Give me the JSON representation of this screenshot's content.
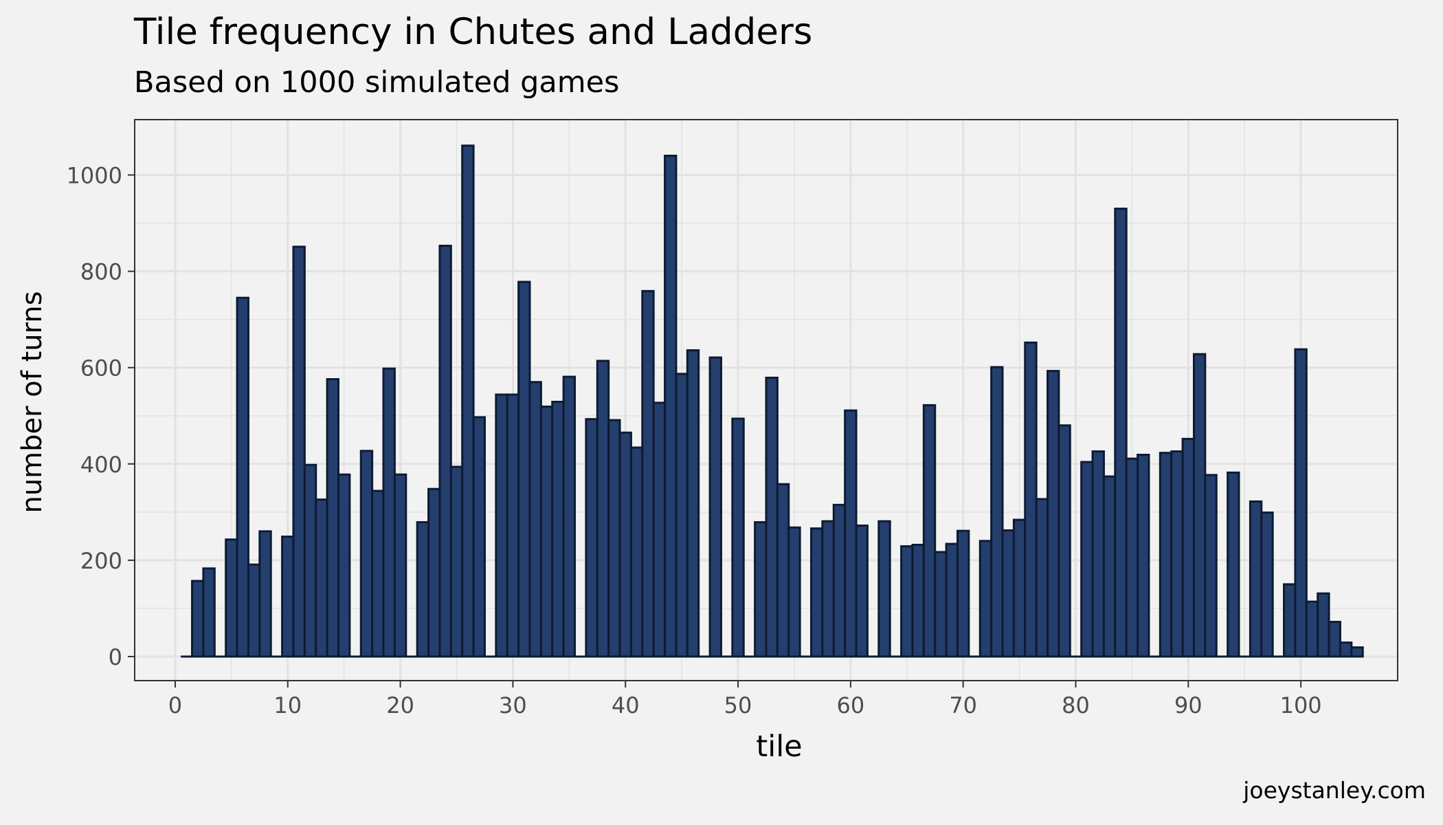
{
  "chart_data": {
    "type": "bar",
    "title": "Tile frequency in Chutes and Ladders",
    "subtitle": "Based on 1000 simulated games",
    "xlabel": "tile",
    "ylabel": "number of turns",
    "caption": "joeystanley.com",
    "xlim": [
      -3.6,
      108.6
    ],
    "ylim": [
      -50,
      1115
    ],
    "x_ticks": [
      0,
      10,
      20,
      30,
      40,
      50,
      60,
      70,
      80,
      90,
      100
    ],
    "y_ticks": [
      0,
      200,
      400,
      600,
      800,
      1000
    ],
    "grid": true,
    "bar_fill": "#243f6d",
    "bar_edge": "#0d1a33",
    "panel_background": "#f2f2f2",
    "grid_color": "#e2e2e2",
    "x": [
      1,
      2,
      3,
      4,
      5,
      6,
      7,
      8,
      9,
      10,
      11,
      12,
      13,
      14,
      15,
      16,
      17,
      18,
      19,
      20,
      21,
      22,
      23,
      24,
      25,
      26,
      27,
      28,
      29,
      30,
      31,
      32,
      33,
      34,
      35,
      36,
      37,
      38,
      39,
      40,
      41,
      42,
      43,
      44,
      45,
      46,
      47,
      48,
      49,
      50,
      51,
      52,
      53,
      54,
      55,
      56,
      57,
      58,
      59,
      60,
      61,
      62,
      63,
      64,
      65,
      66,
      67,
      68,
      69,
      70,
      71,
      72,
      73,
      74,
      75,
      76,
      77,
      78,
      79,
      80,
      81,
      82,
      83,
      84,
      85,
      86,
      87,
      88,
      89,
      90,
      91,
      92,
      93,
      94,
      95,
      96,
      97,
      98,
      99,
      100,
      101,
      102,
      103,
      104,
      105
    ],
    "values": [
      0,
      157,
      183,
      0,
      243,
      745,
      191,
      260,
      0,
      249,
      851,
      398,
      326,
      576,
      378,
      0,
      427,
      344,
      598,
      378,
      0,
      279,
      348,
      853,
      394,
      1061,
      497,
      0,
      544,
      544,
      778,
      570,
      519,
      529,
      581,
      0,
      493,
      614,
      491,
      465,
      434,
      759,
      527,
      1040,
      587,
      636,
      0,
      621,
      0,
      494,
      0,
      279,
      579,
      358,
      268,
      0,
      266,
      281,
      315,
      511,
      272,
      0,
      281,
      0,
      229,
      232,
      522,
      217,
      234,
      261,
      0,
      240,
      601,
      262,
      284,
      652,
      327,
      593,
      480,
      0,
      404,
      426,
      374,
      930,
      411,
      419,
      0,
      423,
      426,
      452,
      628,
      377,
      0,
      382,
      0,
      322,
      299,
      0,
      150,
      638,
      114,
      131,
      72,
      29,
      19
    ]
  }
}
